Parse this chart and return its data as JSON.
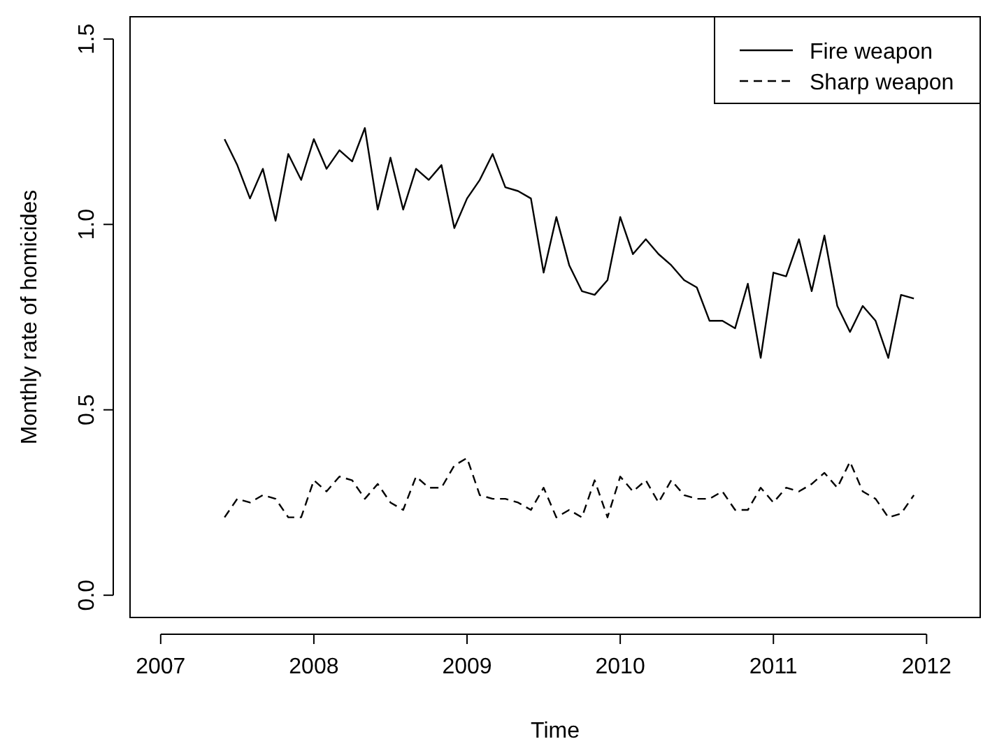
{
  "chart_data": {
    "type": "line",
    "xlabel": "Time",
    "ylabel": "Monthly rate of homicides",
    "x": [
      2007.417,
      2007.5,
      2007.583,
      2007.667,
      2007.75,
      2007.833,
      2007.917,
      2008,
      2008.083,
      2008.167,
      2008.25,
      2008.333,
      2008.417,
      2008.5,
      2008.583,
      2008.667,
      2008.75,
      2008.833,
      2008.917,
      2009,
      2009.083,
      2009.167,
      2009.25,
      2009.333,
      2009.417,
      2009.5,
      2009.583,
      2009.667,
      2009.75,
      2009.833,
      2009.917,
      2010,
      2010.083,
      2010.167,
      2010.25,
      2010.333,
      2010.417,
      2010.5,
      2010.583,
      2010.667,
      2010.75,
      2010.833,
      2010.917,
      2011,
      2011.083,
      2011.167,
      2011.25,
      2011.333,
      2011.417,
      2011.5,
      2011.583,
      2011.667,
      2011.75,
      2011.833,
      2011.917
    ],
    "series": [
      {
        "name": "Fire weapon",
        "color": "#000000",
        "line_style": "solid",
        "values": [
          1.23,
          1.16,
          1.07,
          1.15,
          1.01,
          1.19,
          1.12,
          1.23,
          1.15,
          1.2,
          1.17,
          1.26,
          1.04,
          1.18,
          1.04,
          1.15,
          1.12,
          1.16,
          0.99,
          1.07,
          1.12,
          1.19,
          1.1,
          1.09,
          1.07,
          0.87,
          1.02,
          0.89,
          0.82,
          0.81,
          0.85,
          1.02,
          0.92,
          0.96,
          0.92,
          0.89,
          0.85,
          0.83,
          0.74,
          0.74,
          0.72,
          0.84,
          0.64,
          0.87,
          0.86,
          0.96,
          0.82,
          0.97,
          0.78,
          0.71,
          0.78,
          0.74,
          0.64,
          0.81,
          0.8
        ]
      },
      {
        "name": "Sharp weapon",
        "color": "#000000",
        "line_style": "dashed",
        "values": [
          0.21,
          0.26,
          0.25,
          0.27,
          0.26,
          0.21,
          0.21,
          0.31,
          0.28,
          0.32,
          0.31,
          0.26,
          0.3,
          0.25,
          0.23,
          0.32,
          0.29,
          0.29,
          0.35,
          0.37,
          0.27,
          0.26,
          0.26,
          0.25,
          0.23,
          0.29,
          0.21,
          0.23,
          0.21,
          0.31,
          0.21,
          0.32,
          0.28,
          0.31,
          0.25,
          0.31,
          0.27,
          0.26,
          0.26,
          0.28,
          0.23,
          0.23,
          0.29,
          0.25,
          0.29,
          0.28,
          0.3,
          0.33,
          0.29,
          0.36,
          0.28,
          0.26,
          0.21,
          0.22,
          0.27
        ]
      }
    ],
    "xlim": [
      2006.8,
      2012.35
    ],
    "xticks": [
      2007,
      2008,
      2009,
      2010,
      2011,
      2012
    ],
    "ylim": [
      -0.06,
      1.56
    ],
    "yticks": [
      {
        "value": 0,
        "label": "0.0"
      },
      0.5,
      {
        "value": 1,
        "label": "1.0"
      },
      1.5
    ],
    "grid": false,
    "legend": "top right"
  }
}
